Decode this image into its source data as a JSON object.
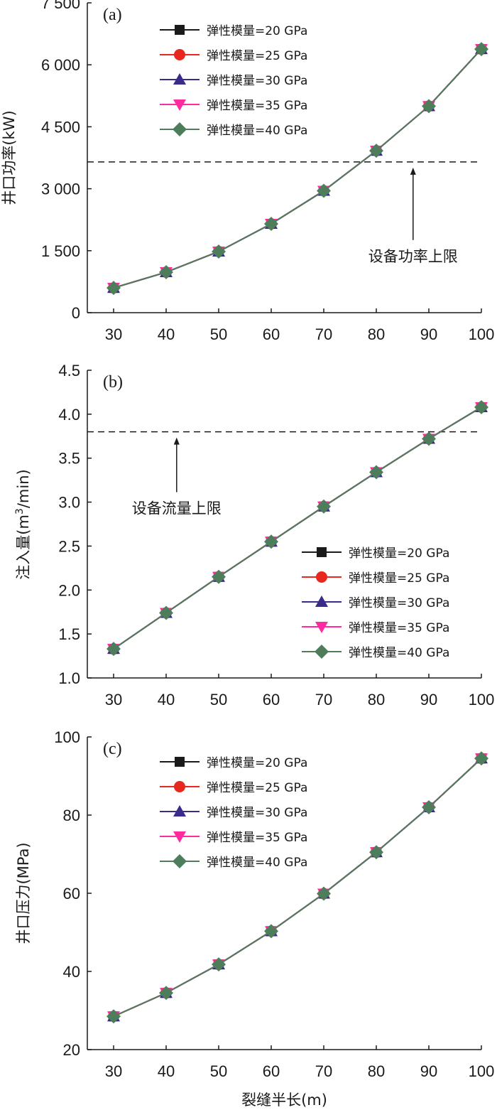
{
  "chart_data": [
    {
      "type": "line",
      "panel_label": "(a)",
      "ylabel": "井口功率(kW)",
      "xlabel": "",
      "x": [
        30,
        40,
        50,
        60,
        70,
        80,
        90,
        100
      ],
      "xlim": [
        25,
        100
      ],
      "ylim": [
        0,
        7500
      ],
      "y_ticks": [
        0,
        1500,
        3000,
        4500,
        6000,
        7500
      ],
      "y_tick_labels": [
        "0",
        "1 500",
        "3 000",
        "4 500",
        "6 000",
        "7 500"
      ],
      "x_tick_labels": [
        "30",
        "40",
        "50",
        "60",
        "70",
        "80",
        "90",
        "100"
      ],
      "legend_position": "top-left",
      "series": [
        {
          "name": "弹性模量=20 GPa",
          "marker": "square",
          "color": "#1a1a1a",
          "values": [
            600,
            980,
            1480,
            2150,
            2950,
            3920,
            5000,
            6380
          ]
        },
        {
          "name": "弹性模量=25 GPa",
          "marker": "circle",
          "color": "#e8281e",
          "values": [
            600,
            980,
            1480,
            2150,
            2950,
            3920,
            5000,
            6380
          ]
        },
        {
          "name": "弹性模量=30 GPa",
          "marker": "triangle-up",
          "color": "#3a2a8c",
          "values": [
            600,
            980,
            1480,
            2150,
            2950,
            3920,
            5000,
            6380
          ]
        },
        {
          "name": "弹性模量=35 GPa",
          "marker": "triangle-down",
          "color": "#ff2aa0",
          "values": [
            600,
            980,
            1480,
            2150,
            2950,
            3920,
            5000,
            6380
          ]
        },
        {
          "name": "弹性模量=40 GPa",
          "marker": "diamond",
          "color": "#4e7d5c",
          "values": [
            600,
            980,
            1480,
            2150,
            2950,
            3920,
            5000,
            6380
          ]
        }
      ],
      "reference_line": {
        "value": 3650,
        "label": "设备功率上限",
        "arrow_x": 87
      }
    },
    {
      "type": "line",
      "panel_label": "(b)",
      "ylabel_prefix": "注入量(m",
      "ylabel_sup": "3",
      "ylabel_suffix": "/min)",
      "xlabel": "",
      "x": [
        30,
        40,
        50,
        60,
        70,
        80,
        90,
        100
      ],
      "xlim": [
        25,
        100
      ],
      "ylim": [
        1.0,
        4.5
      ],
      "y_ticks": [
        1.0,
        1.5,
        2.0,
        2.5,
        3.0,
        3.5,
        4.0,
        4.5
      ],
      "y_tick_labels": [
        "1.0",
        "1.5",
        "2.0",
        "2.5",
        "3.0",
        "3.5",
        "4.0",
        "4.5"
      ],
      "x_tick_labels": [
        "30",
        "40",
        "50",
        "60",
        "70",
        "80",
        "90",
        "100"
      ],
      "legend_position": "bottom-right",
      "series": [
        {
          "name": "弹性模量=20 GPa",
          "marker": "square",
          "color": "#1a1a1a",
          "values": [
            1.33,
            1.74,
            2.15,
            2.55,
            2.95,
            3.34,
            3.72,
            4.08
          ]
        },
        {
          "name": "弹性模量=25 GPa",
          "marker": "circle",
          "color": "#e8281e",
          "values": [
            1.33,
            1.74,
            2.15,
            2.55,
            2.95,
            3.34,
            3.72,
            4.08
          ]
        },
        {
          "name": "弹性模量=30 GPa",
          "marker": "triangle-up",
          "color": "#3a2a8c",
          "values": [
            1.33,
            1.74,
            2.15,
            2.55,
            2.95,
            3.34,
            3.72,
            4.08
          ]
        },
        {
          "name": "弹性模量=35 GPa",
          "marker": "triangle-down",
          "color": "#ff2aa0",
          "values": [
            1.33,
            1.74,
            2.15,
            2.55,
            2.95,
            3.34,
            3.72,
            4.08
          ]
        },
        {
          "name": "弹性模量=40 GPa",
          "marker": "diamond",
          "color": "#4e7d5c",
          "values": [
            1.33,
            1.74,
            2.15,
            2.55,
            2.95,
            3.34,
            3.72,
            4.08
          ]
        }
      ],
      "reference_line": {
        "value": 3.8,
        "label": "设备流量上限",
        "arrow_x": 42
      }
    },
    {
      "type": "line",
      "panel_label": "(c)",
      "ylabel": "井口压力(MPa)",
      "xlabel": "裂缝半长(m)",
      "x": [
        30,
        40,
        50,
        60,
        70,
        80,
        90,
        100
      ],
      "xlim": [
        25,
        100
      ],
      "ylim": [
        20,
        100
      ],
      "y_ticks": [
        20,
        40,
        60,
        80,
        100
      ],
      "y_tick_labels": [
        "20",
        "40",
        "60",
        "80",
        "100"
      ],
      "x_tick_labels": [
        "30",
        "40",
        "50",
        "60",
        "70",
        "80",
        "90",
        "100"
      ],
      "legend_position": "top-left",
      "series": [
        {
          "name": "弹性模量=20 GPa",
          "marker": "square",
          "color": "#1a1a1a",
          "values": [
            28.5,
            34.5,
            41.8,
            50.3,
            59.9,
            70.5,
            82.0,
            94.5
          ]
        },
        {
          "name": "弹性模量=25 GPa",
          "marker": "circle",
          "color": "#e8281e",
          "values": [
            28.5,
            34.5,
            41.8,
            50.3,
            59.9,
            70.5,
            82.0,
            94.5
          ]
        },
        {
          "name": "弹性模量=30 GPa",
          "marker": "triangle-up",
          "color": "#3a2a8c",
          "values": [
            28.5,
            34.5,
            41.8,
            50.3,
            59.9,
            70.5,
            82.0,
            94.5
          ]
        },
        {
          "name": "弹性模量=35 GPa",
          "marker": "triangle-down",
          "color": "#ff2aa0",
          "values": [
            28.5,
            34.5,
            41.8,
            50.3,
            59.9,
            70.5,
            82.0,
            94.5
          ]
        },
        {
          "name": "弹性模量=40 GPa",
          "marker": "diamond",
          "color": "#4e7d5c",
          "values": [
            28.5,
            34.5,
            41.8,
            50.3,
            59.9,
            70.5,
            82.0,
            94.5
          ]
        }
      ]
    }
  ]
}
